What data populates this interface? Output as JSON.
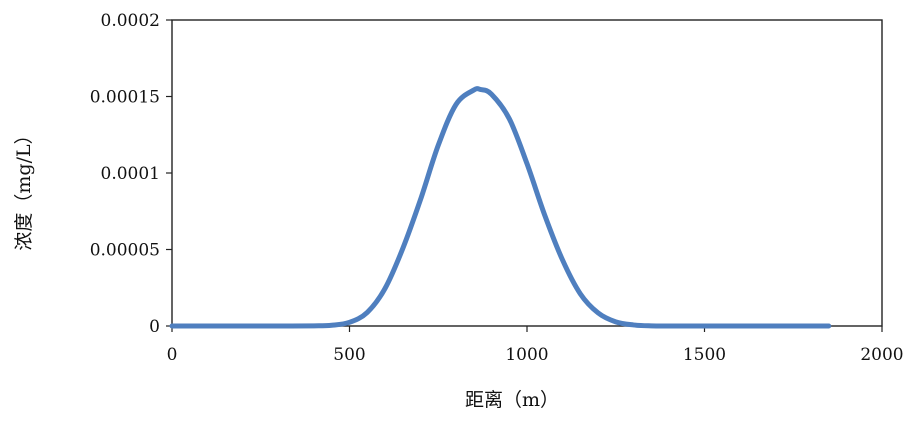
{
  "chart_data": {
    "type": "line",
    "xlabel": "距离（m）",
    "ylabel": "浓度（mg/L）",
    "xlim": [
      0,
      2000
    ],
    "ylim": [
      0,
      0.0002
    ],
    "x_ticks": [
      "0",
      "500",
      "1000",
      "1500",
      "2000"
    ],
    "y_ticks": [
      "0",
      "0.00005",
      "0.0001",
      "0.00015",
      "0.0002"
    ],
    "grid": false,
    "legend": "none",
    "series": [
      {
        "color": "#4f7fbf",
        "x": [
          0,
          100,
          200,
          300,
          400,
          450,
          500,
          550,
          600,
          650,
          700,
          750,
          800,
          850,
          870,
          900,
          950,
          1000,
          1050,
          1100,
          1150,
          1200,
          1250,
          1300,
          1350,
          1400,
          1500,
          1600,
          1700,
          1800,
          1850
        ],
        "y": [
          0,
          0,
          0,
          0,
          1e-07,
          5e-07,
          2.4e-06,
          8.9e-06,
          2.45e-05,
          5.06e-05,
          8.26e-05,
          0.0001181,
          0.0001448,
          0.0001542,
          0.0001545,
          0.0001515,
          0.0001355,
          0.0001061,
          7.24e-05,
          4.32e-05,
          2.11e-05,
          8.6e-06,
          2.7e-06,
          7e-07,
          1e-07,
          0,
          0,
          0,
          0,
          0,
          0
        ]
      }
    ]
  }
}
